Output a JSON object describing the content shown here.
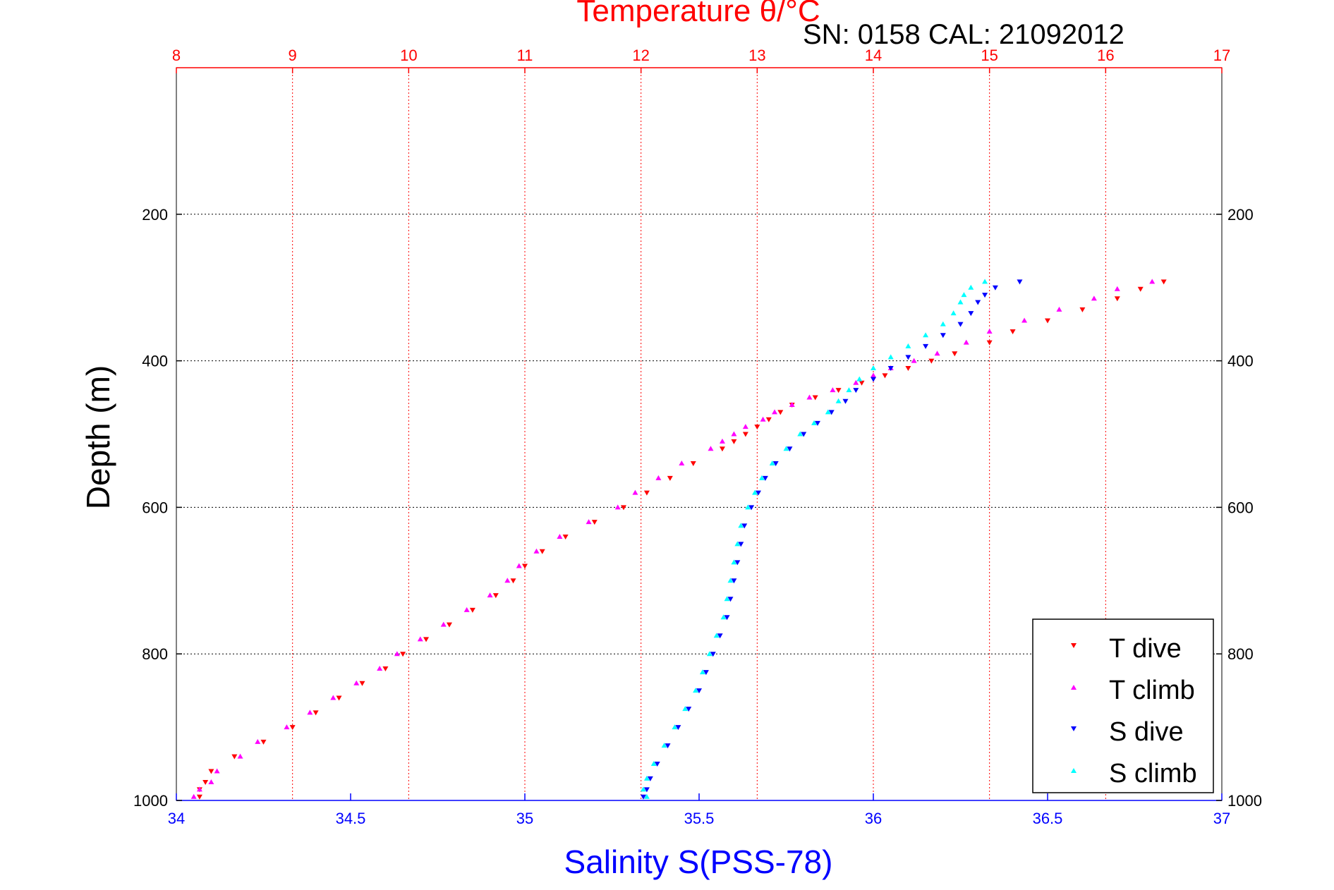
{
  "chart_data": {
    "type": "scatter",
    "title": "Temperature θ/°C",
    "subtitle": "SN: 0158  CAL: 21092012",
    "xlabel": "Salinity S(PSS-78)",
    "ylabel": "Depth (m)",
    "top_axis": {
      "label": "Temperature θ/°C",
      "range": [
        8,
        17
      ],
      "ticks": [
        "8",
        "9",
        "10",
        "11",
        "12",
        "13",
        "14",
        "15",
        "16",
        "17"
      ],
      "color": "#ff0000"
    },
    "bottom_axis": {
      "label": "Salinity S(PSS-78)",
      "range": [
        34,
        37
      ],
      "ticks": [
        "34",
        "34.5",
        "35",
        "35.5",
        "36",
        "36.5",
        "37"
      ],
      "color": "#0000ff"
    },
    "y_axis": {
      "range": [
        0,
        1000
      ],
      "reversed": true,
      "ticks": [
        "200",
        "400",
        "600",
        "800",
        "1000"
      ]
    },
    "grid": true,
    "legend_position": "bottom-right",
    "series": [
      {
        "name": "T dive",
        "axis": "top",
        "color": "#ff0000",
        "marker": "triangle-down",
        "depth": [
          292,
          302,
          315,
          330,
          345,
          360,
          375,
          390,
          400,
          410,
          420,
          430,
          440,
          450,
          460,
          470,
          480,
          490,
          500,
          510,
          520,
          540,
          560,
          580,
          600,
          620,
          640,
          660,
          680,
          700,
          720,
          740,
          760,
          780,
          800,
          820,
          840,
          860,
          880,
          900,
          920,
          940,
          960,
          975,
          985,
          995
        ],
        "temperature": [
          16.5,
          16.3,
          16.1,
          15.8,
          15.5,
          15.2,
          15.0,
          14.7,
          14.5,
          14.3,
          14.1,
          13.9,
          13.7,
          13.5,
          13.3,
          13.2,
          13.1,
          13.0,
          12.9,
          12.8,
          12.7,
          12.45,
          12.25,
          12.05,
          11.85,
          11.6,
          11.35,
          11.15,
          11.0,
          10.9,
          10.75,
          10.55,
          10.35,
          10.15,
          9.95,
          9.8,
          9.6,
          9.4,
          9.2,
          9.0,
          8.75,
          8.5,
          8.3,
          8.25,
          8.2,
          8.2
        ]
      },
      {
        "name": "T climb",
        "axis": "top",
        "color": "#ff00ff",
        "marker": "triangle-up",
        "depth": [
          292,
          302,
          315,
          330,
          345,
          360,
          375,
          390,
          400,
          410,
          420,
          430,
          440,
          450,
          460,
          470,
          480,
          490,
          500,
          510,
          520,
          540,
          560,
          580,
          600,
          620,
          640,
          660,
          680,
          700,
          720,
          740,
          760,
          780,
          800,
          820,
          840,
          860,
          880,
          900,
          920,
          940,
          960,
          975,
          985,
          995
        ],
        "temperature": [
          16.4,
          16.1,
          15.9,
          15.6,
          15.3,
          15.0,
          14.8,
          14.55,
          14.35,
          14.15,
          14.0,
          13.85,
          13.65,
          13.45,
          13.3,
          13.15,
          13.05,
          12.9,
          12.8,
          12.7,
          12.6,
          12.35,
          12.15,
          11.95,
          11.8,
          11.55,
          11.3,
          11.1,
          10.95,
          10.85,
          10.7,
          10.5,
          10.3,
          10.1,
          9.9,
          9.75,
          9.55,
          9.35,
          9.15,
          8.95,
          8.7,
          8.55,
          8.35,
          8.3,
          8.2,
          8.15
        ]
      },
      {
        "name": "S dive",
        "axis": "bottom",
        "color": "#0000ff",
        "marker": "triangle-down",
        "depth": [
          292,
          300,
          310,
          320,
          335,
          350,
          365,
          380,
          395,
          410,
          425,
          440,
          455,
          470,
          485,
          500,
          520,
          540,
          560,
          580,
          600,
          625,
          650,
          675,
          700,
          725,
          750,
          775,
          800,
          825,
          850,
          875,
          900,
          925,
          950,
          970,
          985,
          995
        ],
        "salinity": [
          36.42,
          36.35,
          36.32,
          36.3,
          36.28,
          36.25,
          36.2,
          36.15,
          36.1,
          36.05,
          36.0,
          35.95,
          35.92,
          35.88,
          35.84,
          35.8,
          35.76,
          35.72,
          35.69,
          35.67,
          35.65,
          35.63,
          35.62,
          35.61,
          35.6,
          35.59,
          35.58,
          35.56,
          35.54,
          35.52,
          35.5,
          35.47,
          35.44,
          35.41,
          35.38,
          35.36,
          35.35,
          35.34
        ]
      },
      {
        "name": "S climb",
        "axis": "bottom",
        "color": "#00ffff",
        "marker": "triangle-up",
        "depth": [
          292,
          300,
          310,
          320,
          335,
          350,
          365,
          380,
          395,
          410,
          425,
          440,
          455,
          470,
          485,
          500,
          520,
          540,
          560,
          580,
          600,
          625,
          650,
          675,
          700,
          725,
          750,
          775,
          800,
          825,
          850,
          875,
          900,
          925,
          950,
          970,
          985,
          995
        ],
        "salinity": [
          36.32,
          36.28,
          36.26,
          36.25,
          36.23,
          36.2,
          36.15,
          36.1,
          36.05,
          36.0,
          35.96,
          35.93,
          35.9,
          35.87,
          35.83,
          35.79,
          35.75,
          35.71,
          35.68,
          35.66,
          35.64,
          35.62,
          35.61,
          35.6,
          35.59,
          35.58,
          35.57,
          35.55,
          35.53,
          35.51,
          35.49,
          35.46,
          35.43,
          35.4,
          35.37,
          35.35,
          35.34,
          35.35
        ]
      }
    ]
  }
}
